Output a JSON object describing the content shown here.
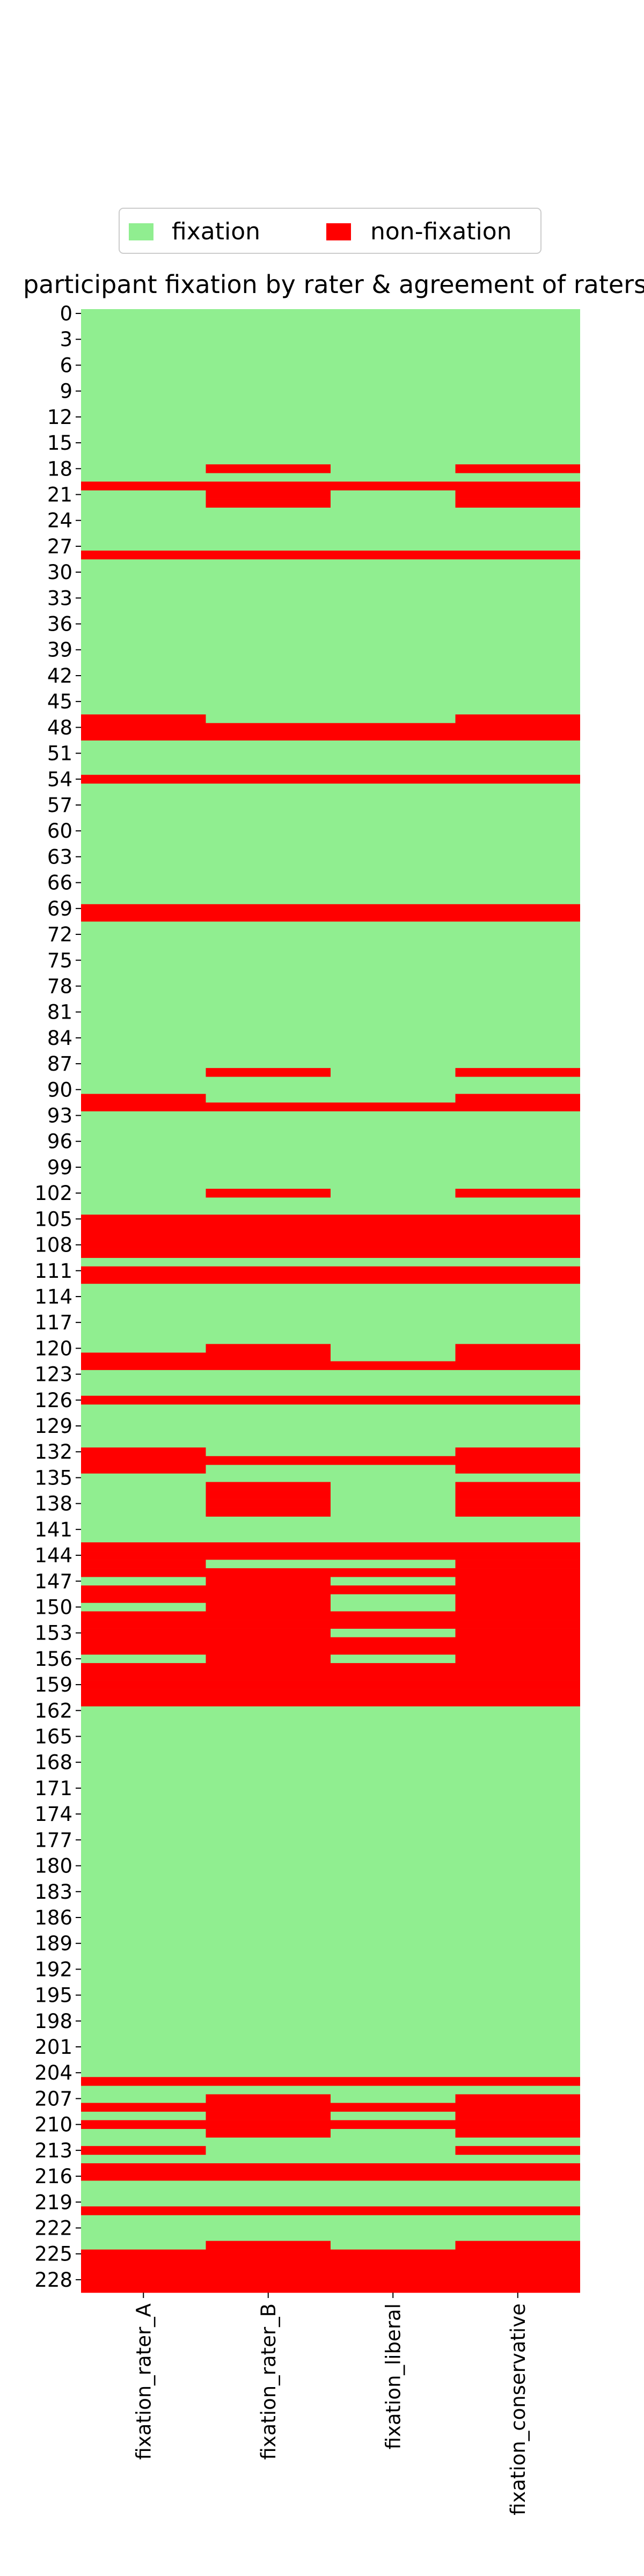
{
  "chart_data": {
    "type": "heatmap",
    "title": "participant fixation by rater & agreement of raters",
    "xlabel": "",
    "ylabel": "",
    "columns": [
      "fixation_rater_A",
      "fixation_rater_B",
      "fixation_liberal",
      "fixation_conservative"
    ],
    "n_rows": 230,
    "row_tick_step": 3,
    "legend": {
      "position": "top-center",
      "items": [
        {
          "label": "fixation",
          "color": "#90ee90",
          "value": 1
        },
        {
          "label": "non-fixation",
          "color": "#ff0000",
          "value": 0
        }
      ]
    },
    "non_fixation_rows": {
      "fixation_rater_A": [
        20,
        28,
        47,
        48,
        49,
        54,
        69,
        70,
        91,
        92,
        105,
        106,
        107,
        108,
        109,
        111,
        112,
        121,
        122,
        126,
        132,
        133,
        134,
        143,
        144,
        145,
        146,
        148,
        149,
        151,
        152,
        153,
        154,
        155,
        157,
        158,
        159,
        160,
        161,
        205,
        208,
        210,
        213,
        215,
        216,
        220,
        225,
        226,
        227,
        228,
        229
      ],
      "fixation_rater_B": [
        18,
        20,
        21,
        22,
        28,
        48,
        49,
        54,
        69,
        70,
        88,
        92,
        102,
        105,
        106,
        107,
        108,
        109,
        111,
        112,
        120,
        121,
        122,
        126,
        133,
        136,
        137,
        138,
        139,
        143,
        144,
        146,
        147,
        148,
        149,
        150,
        151,
        152,
        153,
        154,
        155,
        156,
        157,
        158,
        159,
        160,
        161,
        205,
        207,
        208,
        209,
        210,
        211,
        215,
        216,
        220,
        224,
        225,
        226,
        227,
        228,
        229
      ],
      "fixation_liberal": [
        20,
        28,
        48,
        49,
        54,
        69,
        70,
        92,
        105,
        106,
        107,
        108,
        109,
        111,
        112,
        122,
        126,
        133,
        143,
        144,
        146,
        148,
        151,
        152,
        154,
        155,
        157,
        158,
        159,
        160,
        161,
        205,
        208,
        210,
        215,
        216,
        220,
        225,
        226,
        227,
        228,
        229
      ],
      "fixation_conservative": [
        18,
        20,
        21,
        22,
        28,
        47,
        48,
        49,
        54,
        69,
        70,
        88,
        91,
        92,
        102,
        105,
        106,
        107,
        108,
        109,
        111,
        112,
        120,
        121,
        122,
        126,
        132,
        133,
        134,
        136,
        137,
        138,
        139,
        143,
        144,
        145,
        146,
        147,
        148,
        149,
        150,
        151,
        152,
        153,
        154,
        155,
        156,
        157,
        158,
        159,
        160,
        161,
        205,
        207,
        208,
        209,
        210,
        211,
        213,
        215,
        216,
        220,
        224,
        225,
        226,
        227,
        228,
        229
      ]
    },
    "grid": false
  }
}
